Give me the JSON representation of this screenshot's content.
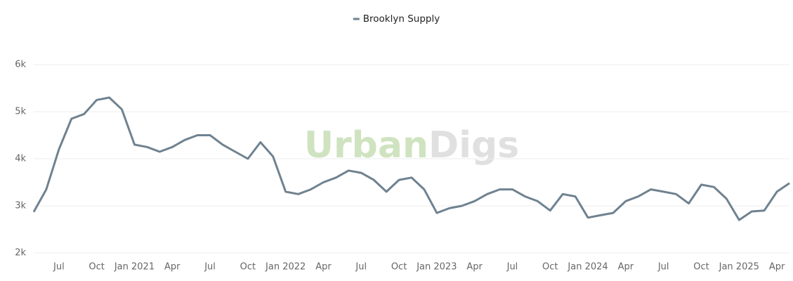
{
  "chart_data": {
    "type": "line",
    "legend_position": "top",
    "watermark": [
      "Urban",
      "Digs"
    ],
    "x": [
      "2020-05",
      "2020-06",
      "2020-07",
      "2020-08",
      "2020-09",
      "2020-10",
      "2020-11",
      "2020-12",
      "2021-01",
      "2021-02",
      "2021-03",
      "2021-04",
      "2021-05",
      "2021-06",
      "2021-07",
      "2021-08",
      "2021-09",
      "2021-10",
      "2021-11",
      "2021-12",
      "2022-01",
      "2022-02",
      "2022-03",
      "2022-04",
      "2022-05",
      "2022-06",
      "2022-07",
      "2022-08",
      "2022-09",
      "2022-10",
      "2022-11",
      "2022-12",
      "2023-01",
      "2023-02",
      "2023-03",
      "2023-04",
      "2023-05",
      "2023-06",
      "2023-07",
      "2023-08",
      "2023-09",
      "2023-10",
      "2023-11",
      "2023-12",
      "2024-01",
      "2024-02",
      "2024-03",
      "2024-04",
      "2024-05",
      "2024-06",
      "2024-07",
      "2024-08",
      "2024-09",
      "2024-10",
      "2024-11",
      "2024-12",
      "2025-01",
      "2025-02",
      "2025-03",
      "2025-04",
      "2025-05"
    ],
    "series": [
      {
        "name": "Brooklyn Supply",
        "color": "#6f8290",
        "values": [
          2870,
          3350,
          4200,
          4850,
          4950,
          5250,
          5300,
          5050,
          4300,
          4250,
          4150,
          4250,
          4400,
          4500,
          4500,
          4300,
          4150,
          4000,
          4350,
          4050,
          3300,
          3250,
          3350,
          3500,
          3600,
          3750,
          3700,
          3550,
          3300,
          3550,
          3600,
          3350,
          2850,
          2950,
          3000,
          3100,
          3250,
          3350,
          3350,
          3200,
          3100,
          2900,
          3250,
          3200,
          2750,
          2800,
          2850,
          3100,
          3200,
          3350,
          3300,
          3250,
          3050,
          3450,
          3400,
          3150,
          2700,
          2880,
          2900,
          3300,
          3480
        ]
      }
    ],
    "xlim": [
      "2020-05",
      "2025-05"
    ],
    "xticks": [
      {
        "value": "2020-07",
        "label": "Jul"
      },
      {
        "value": "2020-10",
        "label": "Oct"
      },
      {
        "value": "2021-01",
        "label": "Jan 2021"
      },
      {
        "value": "2021-04",
        "label": "Apr"
      },
      {
        "value": "2021-07",
        "label": "Jul"
      },
      {
        "value": "2021-10",
        "label": "Oct"
      },
      {
        "value": "2022-01",
        "label": "Jan 2022"
      },
      {
        "value": "2022-04",
        "label": "Apr"
      },
      {
        "value": "2022-07",
        "label": "Jul"
      },
      {
        "value": "2022-10",
        "label": "Oct"
      },
      {
        "value": "2023-01",
        "label": "Jan 2023"
      },
      {
        "value": "2023-04",
        "label": "Apr"
      },
      {
        "value": "2023-07",
        "label": "Jul"
      },
      {
        "value": "2023-10",
        "label": "Oct"
      },
      {
        "value": "2024-01",
        "label": "Jan 2024"
      },
      {
        "value": "2024-04",
        "label": "Apr"
      },
      {
        "value": "2024-07",
        "label": "Jul"
      },
      {
        "value": "2024-10",
        "label": "Oct"
      },
      {
        "value": "2025-01",
        "label": "Jan 2025"
      },
      {
        "value": "2025-04",
        "label": "Apr"
      }
    ],
    "ylim": [
      2000,
      6000
    ],
    "yticks": [
      {
        "value": 2000,
        "label": "2k"
      },
      {
        "value": 3000,
        "label": "3k"
      },
      {
        "value": 4000,
        "label": "4k"
      },
      {
        "value": 5000,
        "label": "5k"
      },
      {
        "value": 6000,
        "label": "6k"
      }
    ],
    "grid": true
  }
}
